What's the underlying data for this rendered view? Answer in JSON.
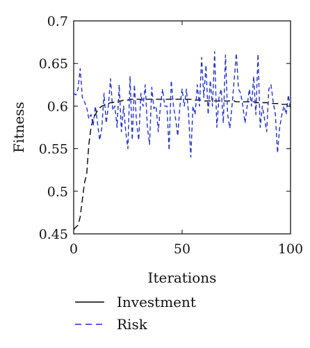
{
  "chart_data": {
    "type": "line",
    "title": "",
    "xlabel": "Iterations",
    "ylabel": "Fitness",
    "xlim": [
      0,
      100
    ],
    "ylim": [
      0.45,
      0.7
    ],
    "xticks": [
      0,
      50,
      100
    ],
    "yticks": [
      0.45,
      0.5,
      0.55,
      0.6,
      0.65,
      0.7
    ],
    "xtick_labels": [
      "0",
      "50",
      "100"
    ],
    "ytick_labels": [
      "0.45",
      "0.5",
      "0.55",
      "0.6",
      "0.65",
      "0.7"
    ],
    "grid": false,
    "legend_position": "below",
    "x": [
      0,
      1,
      2,
      3,
      4,
      5,
      6,
      7,
      8,
      9,
      10,
      11,
      12,
      13,
      14,
      15,
      16,
      17,
      18,
      19,
      20,
      21,
      22,
      23,
      24,
      25,
      26,
      27,
      28,
      29,
      30,
      31,
      32,
      33,
      34,
      35,
      36,
      37,
      38,
      39,
      40,
      41,
      42,
      43,
      44,
      45,
      46,
      47,
      48,
      49,
      50,
      51,
      52,
      53,
      54,
      55,
      56,
      57,
      58,
      59,
      60,
      61,
      62,
      63,
      64,
      65,
      66,
      67,
      68,
      69,
      70,
      71,
      72,
      73,
      74,
      75,
      76,
      77,
      78,
      79,
      80,
      81,
      82,
      83,
      84,
      85,
      86,
      87,
      88,
      89,
      90,
      91,
      92,
      93,
      94,
      95,
      96,
      97,
      98,
      99,
      100
    ],
    "series": [
      {
        "name": "Investment",
        "color": "#000000",
        "dash": "long",
        "values": [
          0.455,
          0.458,
          0.46,
          0.47,
          0.49,
          0.51,
          0.52,
          0.555,
          0.575,
          0.585,
          0.59,
          0.595,
          0.598,
          0.6,
          0.601,
          0.602,
          0.603,
          0.604,
          0.604,
          0.605,
          0.605,
          0.606,
          0.606,
          0.607,
          0.607,
          0.607,
          0.608,
          0.608,
          0.608,
          0.608,
          0.608,
          0.608,
          0.608,
          0.608,
          0.608,
          0.608,
          0.608,
          0.608,
          0.608,
          0.608,
          0.608,
          0.608,
          0.608,
          0.608,
          0.608,
          0.608,
          0.608,
          0.608,
          0.608,
          0.608,
          0.608,
          0.608,
          0.608,
          0.608,
          0.608,
          0.607,
          0.607,
          0.607,
          0.607,
          0.607,
          0.606,
          0.606,
          0.606,
          0.606,
          0.606,
          0.606,
          0.606,
          0.606,
          0.606,
          0.606,
          0.606,
          0.606,
          0.606,
          0.606,
          0.606,
          0.605,
          0.605,
          0.605,
          0.605,
          0.605,
          0.605,
          0.605,
          0.605,
          0.605,
          0.604,
          0.604,
          0.604,
          0.604,
          0.604,
          0.604,
          0.603,
          0.603,
          0.603,
          0.603,
          0.603,
          0.602,
          0.602,
          0.602,
          0.602,
          0.602,
          0.601
        ]
      },
      {
        "name": "Risk",
        "color": "#1f2fc8",
        "dash": "short",
        "values": [
          0.615,
          0.613,
          0.62,
          0.644,
          0.61,
          0.605,
          0.598,
          0.585,
          0.59,
          0.577,
          0.6,
          0.58,
          0.56,
          0.575,
          0.615,
          0.58,
          0.6,
          0.632,
          0.595,
          0.6,
          0.575,
          0.625,
          0.57,
          0.6,
          0.57,
          0.55,
          0.635,
          0.56,
          0.625,
          0.58,
          0.56,
          0.615,
          0.6,
          0.625,
          0.575,
          0.555,
          0.622,
          0.597,
          0.6,
          0.57,
          0.6,
          0.62,
          0.6,
          0.6,
          0.548,
          0.63,
          0.6,
          0.585,
          0.565,
          0.6,
          0.62,
          0.6,
          0.62,
          0.59,
          0.54,
          0.6,
          0.59,
          0.625,
          0.6,
          0.657,
          0.61,
          0.648,
          0.59,
          0.63,
          0.6,
          0.664,
          0.575,
          0.61,
          0.62,
          0.58,
          0.66,
          0.59,
          0.574,
          0.6,
          0.63,
          0.662,
          0.62,
          0.615,
          0.6,
          0.58,
          0.6,
          0.62,
          0.6,
          0.635,
          0.59,
          0.661,
          0.575,
          0.6,
          0.585,
          0.57,
          0.62,
          0.625,
          0.605,
          0.59,
          0.545,
          0.575,
          0.59,
          0.6,
          0.59,
          0.613,
          0.595
        ]
      }
    ]
  }
}
